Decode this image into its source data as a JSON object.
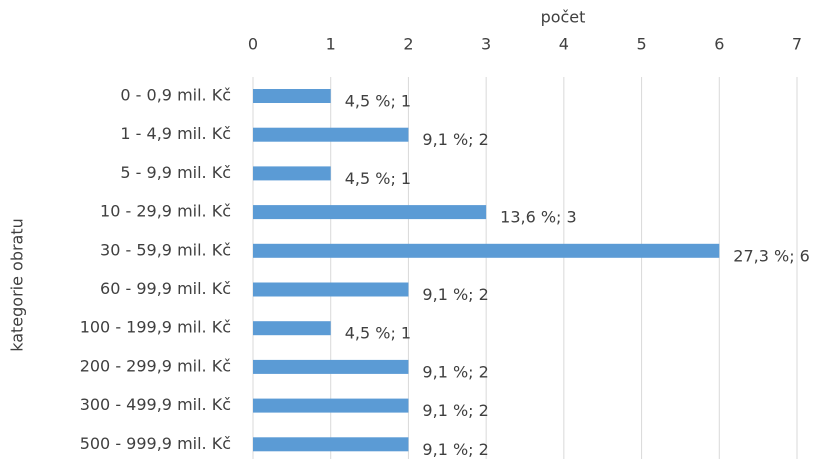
{
  "chart_data": {
    "type": "bar",
    "orientation": "horizontal",
    "xlabel": "počet",
    "ylabel": "kategorie obratu",
    "categories": [
      "0 - 0,9 mil. Kč",
      "1 - 4,9 mil. Kč",
      "5 - 9,9 mil. Kč",
      "10 - 29,9 mil. Kč",
      "30 - 59,9 mil. Kč",
      "60 - 99,9 mil. Kč",
      "100 - 199,9 mil. Kč",
      "200 - 299,9 mil. Kč",
      "300 - 499,9 mil. Kč",
      "500 - 999,9 mil. Kč"
    ],
    "values": [
      1,
      2,
      1,
      3,
      6,
      2,
      1,
      2,
      2,
      2
    ],
    "value_labels": [
      "4,5 %; 1",
      "9,1 %; 2",
      "4,5 %; 1",
      "13,6 %; 3",
      "27,3 %; 6",
      "9,1 %; 2",
      "4,5 %; 1",
      "9,1 %; 2",
      "9,1 %; 2",
      "9,1 %; 2"
    ],
    "color": "#5b9bd5",
    "xlim": [
      0,
      7
    ],
    "xticks": [
      0,
      1,
      2,
      3,
      4,
      5,
      6,
      7
    ],
    "grid": true,
    "xaxis_position": "top"
  }
}
